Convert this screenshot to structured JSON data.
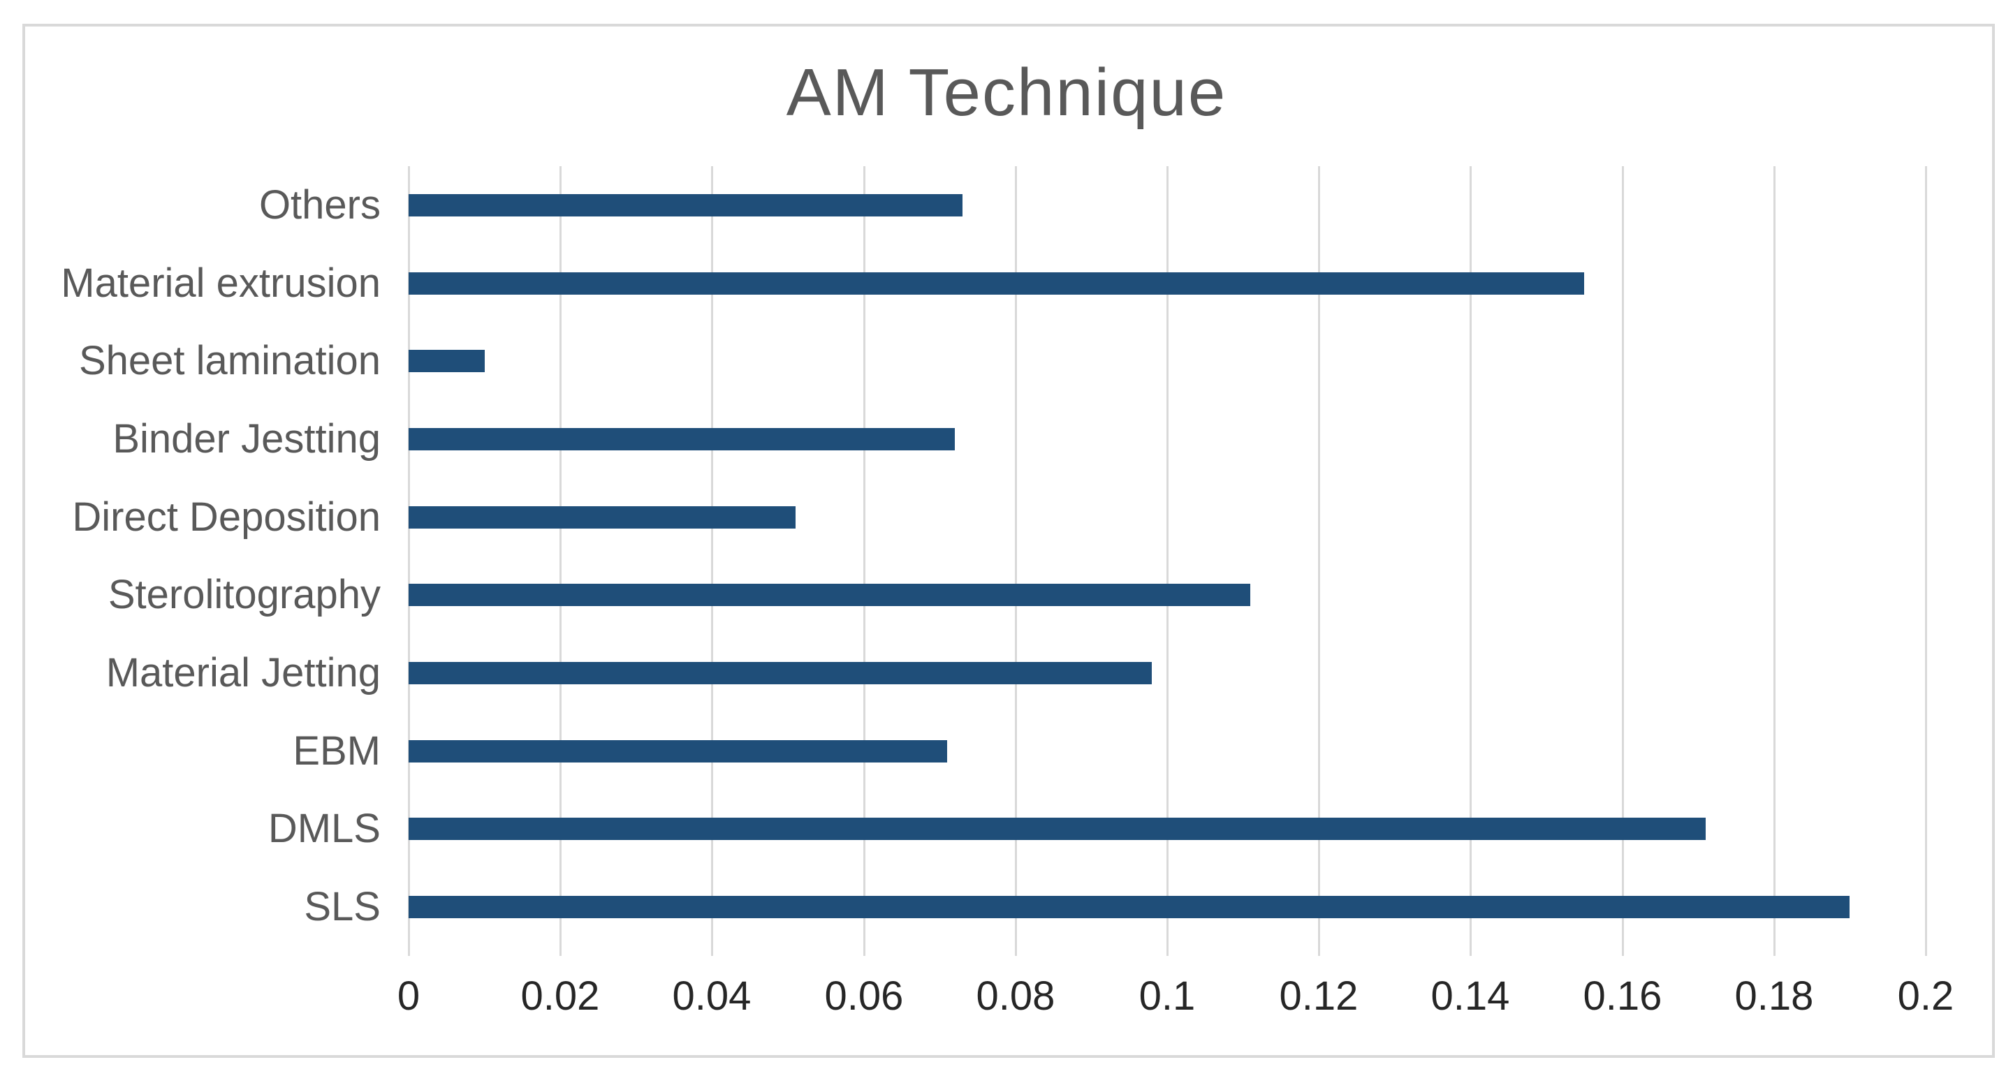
{
  "window": {
    "background_color": "#ffffff",
    "frame_border_color": "#d9d9d9"
  },
  "chart_data": {
    "type": "bar",
    "orientation": "horizontal",
    "title": "AM Technique",
    "categories": [
      "Others",
      "Material extrusion",
      "Sheet lamination",
      "Binder Jestting",
      "Direct Deposition",
      "Sterolitography",
      "Material Jetting",
      "EBM",
      "DMLS",
      "SLS"
    ],
    "values": [
      0.073,
      0.155,
      0.01,
      0.072,
      0.051,
      0.111,
      0.098,
      0.071,
      0.171,
      0.19
    ],
    "xlabel": "",
    "ylabel": "",
    "xlim": [
      0,
      0.2
    ],
    "x_tick_labels": [
      "0",
      "0.02",
      "0.04",
      "0.06",
      "0.08",
      "0.1",
      "0.12",
      "0.14",
      "0.16",
      "0.18",
      "0.2"
    ],
    "x_tick_values": [
      0,
      0.02,
      0.04,
      0.06,
      0.08,
      0.1,
      0.12,
      0.14,
      0.16,
      0.18,
      0.2
    ],
    "grid": "vertical-gridlines-on",
    "legend": "none",
    "bar_color": "#1F4E79",
    "gridline_color": "#D9D9D9",
    "title_color": "#595959",
    "category_label_color": "#595959",
    "tick_label_color": "#262626"
  }
}
